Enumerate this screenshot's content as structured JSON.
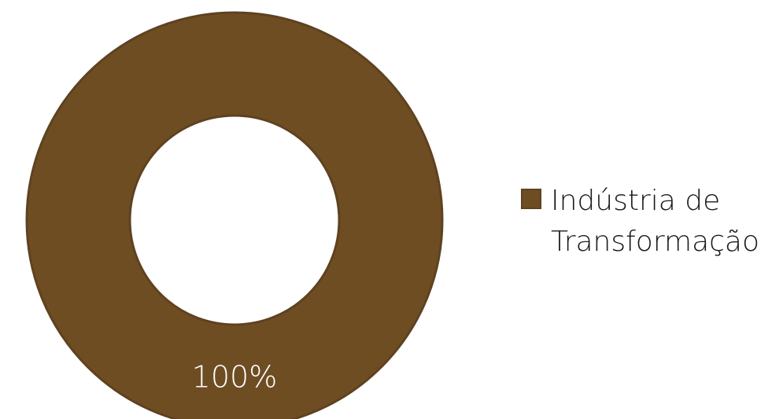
{
  "chart_data": {
    "type": "pie",
    "variant": "donut",
    "title": "",
    "categories": [
      "Indústria de Transformação"
    ],
    "values": [
      100
    ],
    "data_labels": [
      "100%"
    ],
    "colors": [
      "#6f4d23"
    ],
    "stroke_color": "#5e4220",
    "label_color": "#ffffff",
    "legend": {
      "placement": "right",
      "entries": [
        "Indústria de Transformação"
      ]
    }
  }
}
